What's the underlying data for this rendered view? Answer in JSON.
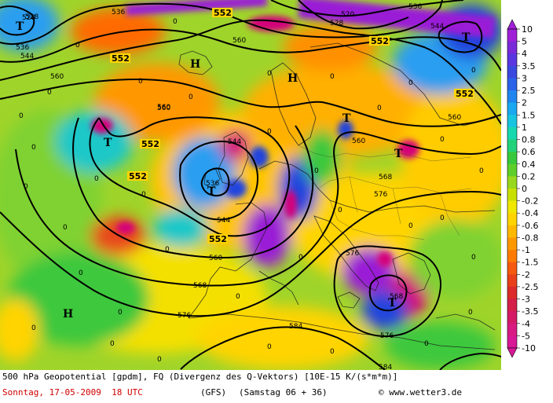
{
  "map": {
    "geopotential_isolines_gpdm": [
      "520",
      "528",
      "536",
      "544",
      "552",
      "560",
      "568",
      "576",
      "584"
    ],
    "q_divergence_zero_marker": "0",
    "pressure_centers": [
      {
        "type": "T",
        "value": "528"
      },
      {
        "type": "T",
        "value": ""
      },
      {
        "type": "T",
        "value": "536"
      },
      {
        "type": "T",
        "value": ""
      },
      {
        "type": "T",
        "value": ""
      },
      {
        "type": "T",
        "value": "568"
      },
      {
        "type": "H",
        "value": ""
      },
      {
        "type": "H",
        "value": ""
      },
      {
        "type": "H",
        "value": ""
      }
    ],
    "colors": {
      "isoline": "#000000",
      "coastline": "#1a1a1a",
      "strong_convergence": "#d4007a",
      "convergence": "#e8481a",
      "weak_convergence": "#ffd400",
      "neutral": "#c8e000",
      "weak_divergence": "#3ec83e",
      "divergence": "#1ec8c8",
      "strong_divergence": "#2244dd",
      "extreme_divergence": "#9a1fd6"
    }
  },
  "legend": {
    "ticks": [
      "10",
      "5",
      "4",
      "3.5",
      "3",
      "2.5",
      "2",
      "1.5",
      "1",
      "0.8",
      "0.6",
      "0.4",
      "0.2",
      "0",
      "-0.2",
      "-0.4",
      "-0.6",
      "-0.8",
      "-1",
      "-1.5",
      "-2",
      "-2.5",
      "-3",
      "-3.5",
      "-4",
      "-5",
      "-10"
    ],
    "colors": [
      "#a020d8",
      "#7a2ad8",
      "#5a36e0",
      "#3a48e0",
      "#2a62e8",
      "#1f86f0",
      "#1aa8f0",
      "#18c4e0",
      "#18d8b0",
      "#22d27a",
      "#38c83c",
      "#5ecf2a",
      "#98d81e",
      "#c8e000",
      "#f0e800",
      "#ffd400",
      "#ffb800",
      "#ff9800",
      "#ff7a00",
      "#f55a10",
      "#e8401a",
      "#dc2a2a",
      "#d41f48",
      "#d41a66",
      "#d81a82",
      "#d81896"
    ]
  },
  "caption": {
    "line1": "500 hPa Geopotential [gpdm], FQ (Divergenz des Q-Vektors) [10E-15 K/(s*m*m)]",
    "date": "Sonntag, 17-05-2009  18 UTC",
    "model": "(GFS)",
    "run": "(Samstag 06 + 36)",
    "credit": "© www.wetter3.de"
  }
}
